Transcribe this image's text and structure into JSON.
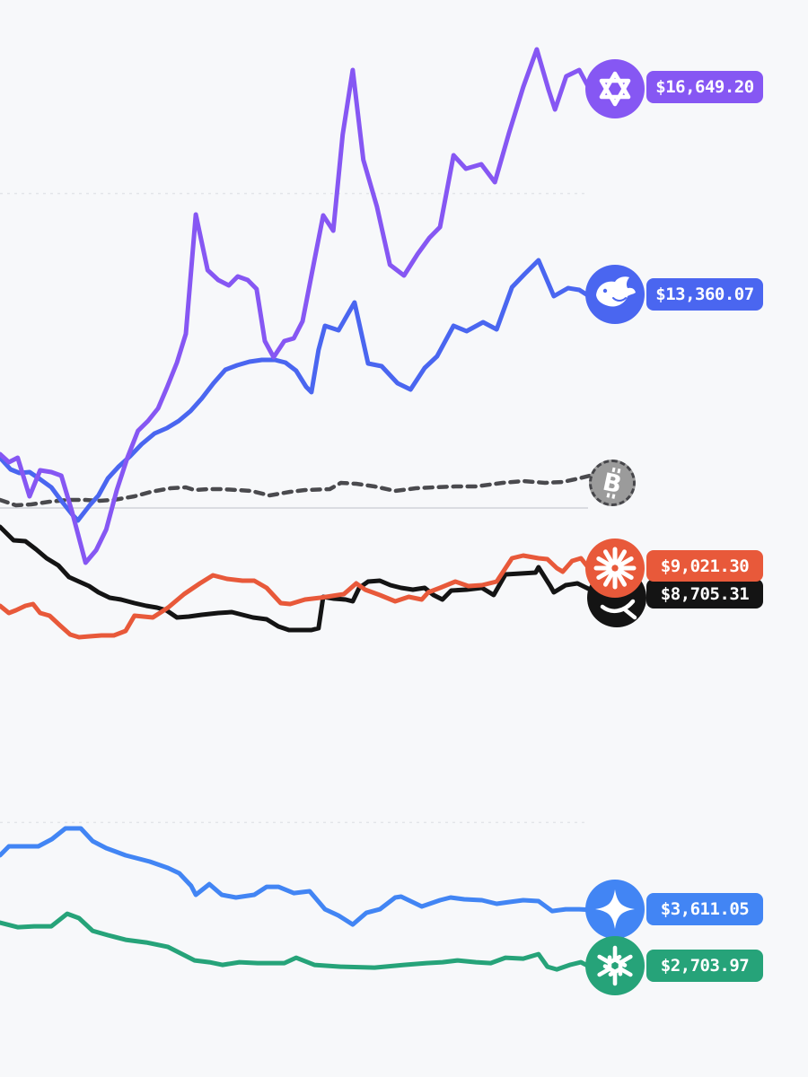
{
  "chart_data": {
    "type": "line",
    "title": "",
    "unit": "USD",
    "background_color": "#f7f8fa",
    "gridline_color": "#e3e5e9",
    "baseline_color": "#c9ccd2",
    "x_axis": {
      "labels_visible": false
    },
    "y_axis": {
      "labels_visible": false,
      "baseline_value": 10000,
      "gridline_values": [
        15000,
        5000
      ]
    },
    "legend_position": "right-edge-badges",
    "series": [
      {
        "id": "qwen",
        "name": "Qwen",
        "icon": "qwen-logo-icon",
        "label": "$16,649.20",
        "final_value": 16649.2,
        "color": "#8657f3",
        "dashed": false,
        "x": [
          0,
          0.015,
          0.03,
          0.05,
          0.068,
          0.087,
          0.104,
          0.122,
          0.145,
          0.163,
          0.18,
          0.198,
          0.216,
          0.234,
          0.251,
          0.268,
          0.283,
          0.3,
          0.315,
          0.332,
          0.352,
          0.37,
          0.388,
          0.403,
          0.42,
          0.435,
          0.449,
          0.464,
          0.482,
          0.498,
          0.513,
          0.533,
          0.548,
          0.565,
          0.581,
          0.598,
          0.616,
          0.639,
          0.661,
          0.685,
          0.708,
          0.728,
          0.746,
          0.769,
          0.79,
          0.816,
          0.839,
          0.863,
          0.887,
          0.91,
          0.93,
          0.941,
          0.96,
          0.982,
          1
        ],
        "v": [
          10856,
          10728,
          10799,
          10186,
          10599,
          10571,
          10514,
          9943,
          9129,
          9329,
          9658,
          10285,
          10799,
          11227,
          11384,
          11584,
          11912,
          12312,
          12768,
          14666,
          13782,
          13625,
          13539,
          13682,
          13625,
          13482,
          12654,
          12397,
          12654,
          12697,
          12968,
          13938,
          14652,
          14409,
          15936,
          16964,
          15536,
          14794,
          13867,
          13696,
          14038,
          14295,
          14466,
          15608,
          15394,
          15465,
          15180,
          15964,
          16692,
          17292,
          16650,
          16336,
          16864,
          16964,
          16649.2
        ]
      },
      {
        "id": "deepseek",
        "name": "DeepSeek",
        "icon": "deepseek-whale-icon",
        "label": "$13,360.07",
        "final_value": 13360.07,
        "color": "#4a66f0",
        "dashed": false,
        "x": [
          0,
          0.018,
          0.033,
          0.05,
          0.068,
          0.087,
          0.104,
          0.122,
          0.132,
          0.152,
          0.167,
          0.183,
          0.201,
          0.221,
          0.24,
          0.262,
          0.283,
          0.303,
          0.323,
          0.342,
          0.362,
          0.382,
          0.402,
          0.423,
          0.444,
          0.466,
          0.484,
          0.502,
          0.519,
          0.528,
          0.54,
          0.551,
          0.574,
          0.601,
          0.624,
          0.647,
          0.674,
          0.696,
          0.72,
          0.741,
          0.769,
          0.791,
          0.819,
          0.842,
          0.868,
          0.89,
          0.913,
          0.939,
          0.963,
          0.982,
          1
        ],
        "v": [
          10799,
          10614,
          10557,
          10571,
          10457,
          10328,
          10114,
          9900,
          9800,
          10043,
          10200,
          10471,
          10656,
          10828,
          11013,
          11184,
          11270,
          11384,
          11541,
          11741,
          11983,
          12198,
          12269,
          12326,
          12354,
          12354,
          12312,
          12183,
          11926,
          11841,
          12512,
          12897,
          12825,
          13268,
          12297,
          12255,
          11984,
          11884,
          12226,
          12412,
          12897,
          12811,
          12954,
          12840,
          13510,
          13724,
          13938,
          13368,
          13496,
          13468,
          13360.07
        ]
      },
      {
        "id": "bitcoin",
        "name": "Bitcoin buy & hold",
        "icon": "bitcoin-icon",
        "label": null,
        "color": "#4a4a4e",
        "icon_fill": "#9b9b9b",
        "dashed": true,
        "x": [
          0,
          0.027,
          0.053,
          0.084,
          0.114,
          0.145,
          0.167,
          0.193,
          0.228,
          0.256,
          0.289,
          0.315,
          0.33,
          0.353,
          0.376,
          0.403,
          0.426,
          0.457,
          0.492,
          0.517,
          0.559,
          0.578,
          0.604,
          0.635,
          0.67,
          0.705,
          0.735,
          0.772,
          0.807,
          0.852,
          0.887,
          0.924,
          0.954,
          0.982,
          1
        ],
        "v": [
          10128,
          10043,
          10057,
          10100,
          10128,
          10128,
          10114,
          10128,
          10186,
          10257,
          10314,
          10328,
          10285,
          10300,
          10300,
          10285,
          10271,
          10200,
          10257,
          10285,
          10300,
          10400,
          10385,
          10342,
          10271,
          10314,
          10328,
          10342,
          10342,
          10400,
          10428,
          10400,
          10414,
          10471,
          10514
        ]
      },
      {
        "id": "claude",
        "name": "Claude",
        "icon": "claude-starburst-icon",
        "label": "$9,021.30",
        "final_value": 9021.3,
        "color": "#e8593a",
        "dashed": false,
        "x": [
          0,
          0.015,
          0.027,
          0.043,
          0.056,
          0.068,
          0.084,
          0.102,
          0.119,
          0.134,
          0.152,
          0.172,
          0.193,
          0.213,
          0.228,
          0.259,
          0.285,
          0.312,
          0.339,
          0.361,
          0.385,
          0.411,
          0.431,
          0.452,
          0.476,
          0.492,
          0.517,
          0.543,
          0.563,
          0.583,
          0.604,
          0.619,
          0.644,
          0.67,
          0.693,
          0.715,
          0.726,
          0.746,
          0.772,
          0.794,
          0.817,
          0.842,
          0.868,
          0.887,
          0.913,
          0.928,
          0.944,
          0.954,
          0.97,
          0.985,
          1
        ],
        "v": [
          8445,
          8331,
          8373,
          8445,
          8473,
          8331,
          8288,
          8131,
          7988,
          7945,
          7960,
          7974,
          7974,
          8045,
          8288,
          8259,
          8416,
          8630,
          8802,
          8930,
          8873,
          8844,
          8844,
          8730,
          8487,
          8473,
          8544,
          8573,
          8602,
          8630,
          8802,
          8701,
          8616,
          8516,
          8587,
          8544,
          8659,
          8730,
          8830,
          8759,
          8773,
          8830,
          9201,
          9244,
          9201,
          9187,
          9044,
          8987,
          9158,
          9201,
          9021.3
        ]
      },
      {
        "id": "grok",
        "name": "Grok",
        "icon": "grok-logo-icon",
        "label": "$8,705.31",
        "final_value": 8705.31,
        "color": "#141414",
        "dashed": false,
        "x": [
          0,
          0.023,
          0.043,
          0.061,
          0.079,
          0.099,
          0.117,
          0.134,
          0.151,
          0.167,
          0.186,
          0.205,
          0.228,
          0.248,
          0.266,
          0.282,
          0.3,
          0.32,
          0.342,
          0.37,
          0.393,
          0.411,
          0.429,
          0.452,
          0.472,
          0.49,
          0.51,
          0.528,
          0.54,
          0.548,
          0.566,
          0.586,
          0.598,
          0.609,
          0.624,
          0.644,
          0.662,
          0.68,
          0.7,
          0.72,
          0.735,
          0.75,
          0.765,
          0.791,
          0.817,
          0.837,
          0.857,
          0.883,
          0.908,
          0.913,
          0.933,
          0.939,
          0.959,
          0.979,
          1
        ],
        "v": [
          9700,
          9486,
          9472,
          9344,
          9201,
          9087,
          8901,
          8830,
          8759,
          8659,
          8573,
          8544,
          8487,
          8445,
          8416,
          8373,
          8259,
          8273,
          8302,
          8330,
          8345,
          8302,
          8259,
          8230,
          8116,
          8059,
          8059,
          8059,
          8088,
          8587,
          8559,
          8544,
          8516,
          8730,
          8830,
          8844,
          8773,
          8730,
          8701,
          8730,
          8616,
          8544,
          8687,
          8701,
          8730,
          8616,
          8944,
          8958,
          8973,
          9058,
          8759,
          8659,
          8773,
          8802,
          8705.31
        ]
      },
      {
        "id": "gemini",
        "name": "Gemini",
        "icon": "gemini-sparkle-icon",
        "label": "$3,611.05",
        "final_value": 3611.05,
        "color": "#4285f4",
        "dashed": false,
        "x": [
          0,
          0.015,
          0.038,
          0.065,
          0.088,
          0.111,
          0.137,
          0.157,
          0.18,
          0.213,
          0.254,
          0.285,
          0.304,
          0.324,
          0.332,
          0.355,
          0.376,
          0.4,
          0.431,
          0.452,
          0.472,
          0.498,
          0.525,
          0.551,
          0.574,
          0.598,
          0.621,
          0.644,
          0.67,
          0.68,
          0.715,
          0.746,
          0.764,
          0.787,
          0.817,
          0.842,
          0.864,
          0.887,
          0.913,
          0.936,
          0.959,
          0.982,
          1
        ],
        "v": [
          4477,
          4620,
          4620,
          4620,
          4734,
          4905,
          4905,
          4705,
          4591,
          4477,
          4377,
          4277,
          4192,
          3992,
          3849,
          4020,
          3849,
          3807,
          3849,
          3977,
          3977,
          3877,
          3906,
          3620,
          3520,
          3378,
          3563,
          3620,
          3807,
          3821,
          3664,
          3764,
          3807,
          3778,
          3764,
          3707,
          3735,
          3764,
          3750,
          3592,
          3620,
          3620,
          3611.05
        ]
      },
      {
        "id": "openai",
        "name": "ChatGPT",
        "icon": "openai-logo-icon",
        "label": "$2,703.97",
        "final_value": 2703.97,
        "color": "#26a379",
        "dashed": false,
        "x": [
          0,
          0.03,
          0.058,
          0.087,
          0.114,
          0.134,
          0.157,
          0.183,
          0.213,
          0.248,
          0.285,
          0.309,
          0.33,
          0.355,
          0.377,
          0.406,
          0.437,
          0.482,
          0.502,
          0.533,
          0.578,
          0.635,
          0.685,
          0.723,
          0.75,
          0.776,
          0.807,
          0.832,
          0.857,
          0.887,
          0.913,
          0.928,
          0.944,
          0.966,
          0.985,
          1
        ],
        "v": [
          3407,
          3335,
          3349,
          3349,
          3549,
          3478,
          3278,
          3207,
          3135,
          3092,
          3021,
          2907,
          2807,
          2778,
          2735,
          2778,
          2764,
          2764,
          2850,
          2735,
          2707,
          2692,
          2735,
          2764,
          2778,
          2807,
          2778,
          2764,
          2850,
          2835,
          2907,
          2707,
          2664,
          2735,
          2778,
          2703.97
        ]
      }
    ]
  }
}
